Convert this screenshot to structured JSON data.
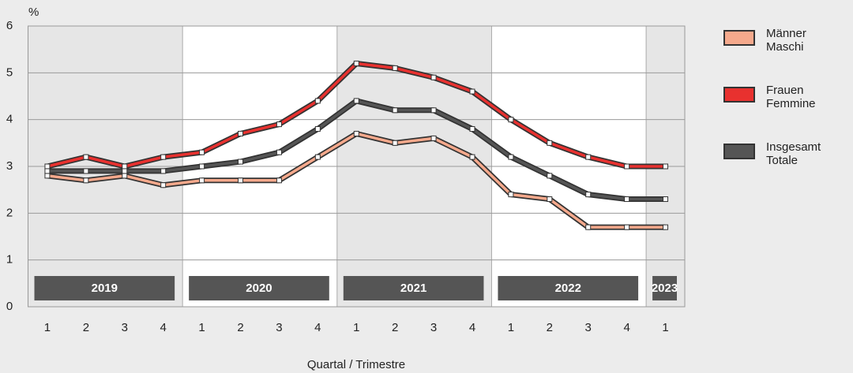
{
  "chart_data": {
    "type": "line",
    "y_unit": "%",
    "x_label": "Quartal / Trimestre",
    "categories": [
      "1",
      "2",
      "3",
      "4",
      "1",
      "2",
      "3",
      "4",
      "1",
      "2",
      "3",
      "4",
      "1",
      "2",
      "3",
      "4",
      "1"
    ],
    "years": [
      "2019",
      "2020",
      "2021",
      "2022",
      "2023"
    ],
    "series": [
      {
        "name": "Männer\nMaschi",
        "color": "#f5a98c",
        "values": [
          2.8,
          2.7,
          2.8,
          2.6,
          2.7,
          2.7,
          2.7,
          3.2,
          3.7,
          3.5,
          3.6,
          3.2,
          2.4,
          2.3,
          1.7,
          1.7,
          1.7
        ]
      },
      {
        "name": "Frauen\nFemmine",
        "color": "#e8312f",
        "values": [
          3.0,
          3.2,
          3.0,
          3.2,
          3.3,
          3.7,
          3.9,
          4.4,
          5.2,
          5.1,
          4.9,
          4.6,
          4.0,
          3.5,
          3.2,
          3.0,
          3.0
        ]
      },
      {
        "name": "Insgesamt\nTotale",
        "color": "#555555",
        "values": [
          2.9,
          2.9,
          2.9,
          2.9,
          3.0,
          3.1,
          3.3,
          3.8,
          4.4,
          4.2,
          4.2,
          3.8,
          3.2,
          2.8,
          2.4,
          2.3,
          2.3
        ]
      }
    ],
    "ylim": [
      0,
      6
    ],
    "yticks": [
      0,
      1,
      2,
      3,
      4,
      5,
      6
    ],
    "grid": true
  }
}
